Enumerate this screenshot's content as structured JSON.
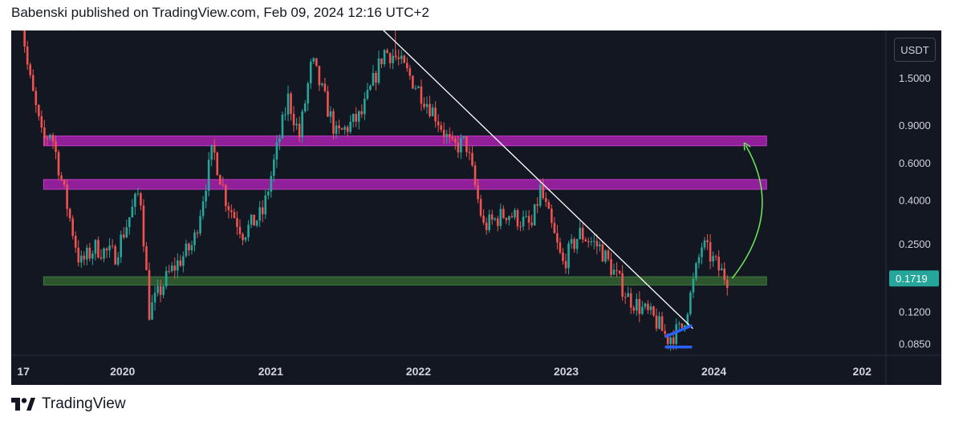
{
  "header": {
    "publisher": "Babenski published on TradingView.com, Feb 09, 2024 12:16 UTC+2"
  },
  "price_axis": {
    "currency": "USDT",
    "last_price_label": "0.1719"
  },
  "branding": {
    "logo_text": "TradingView"
  },
  "colors": {
    "background": "#131722",
    "bull": "#26a69a",
    "bear": "#ef5350",
    "resistance_zone": "#a020a6",
    "support_zone": "#2e5a2f",
    "trendline": "#ffffff",
    "wedge": "#2962ff",
    "arrow": "#6ee95a",
    "last_price_bg": "#26a69a"
  },
  "chart_data": {
    "type": "candlestick",
    "scale": "log",
    "ylim": [
      0.075,
      2.5
    ],
    "y_ticks": [
      0.085,
      0.12,
      0.17,
      0.25,
      0.4,
      0.6,
      0.9,
      1.5
    ],
    "y_tick_labels": [
      "0.0850",
      "0.1200",
      "0.1719",
      "0.2500",
      "0.4000",
      "0.6000",
      "0.9000",
      "1.5000"
    ],
    "x_range": [
      "2019-04",
      "2025-03"
    ],
    "x_ticks": [
      {
        "date": "2019-05",
        "label": "17"
      },
      {
        "date": "2020-01",
        "label": "2020"
      },
      {
        "date": "2021-01",
        "label": "2021"
      },
      {
        "date": "2022-01",
        "label": "2022"
      },
      {
        "date": "2023-01",
        "label": "2023"
      },
      {
        "date": "2024-01",
        "label": "2024"
      },
      {
        "date": "2025-01",
        "label": "202"
      }
    ],
    "price_path": [
      [
        "2019-04-20",
        4.5
      ],
      [
        "2019-05-20",
        1.6
      ],
      [
        "2019-06-25",
        0.75
      ],
      [
        "2019-07-15",
        0.85
      ],
      [
        "2019-08-15",
        0.45
      ],
      [
        "2019-09-25",
        0.2
      ],
      [
        "2019-11-01",
        0.24
      ],
      [
        "2019-12-20",
        0.22
      ],
      [
        "2020-02-20",
        0.45
      ],
      [
        "2020-03-14",
        0.12
      ],
      [
        "2020-05-01",
        0.18
      ],
      [
        "2020-07-01",
        0.25
      ],
      [
        "2020-08-18",
        0.7
      ],
      [
        "2020-09-20",
        0.4
      ],
      [
        "2020-11-01",
        0.28
      ],
      [
        "2020-12-20",
        0.35
      ],
      [
        "2021-02-20",
        1.2
      ],
      [
        "2021-03-20",
        0.8
      ],
      [
        "2021-04-20",
        1.8
      ],
      [
        "2021-06-20",
        0.8
      ],
      [
        "2021-08-20",
        1.0
      ],
      [
        "2021-10-15",
        2.0
      ],
      [
        "2021-11-10",
        1.9
      ],
      [
        "2021-12-20",
        1.5
      ],
      [
        "2022-02-20",
        1.0
      ],
      [
        "2022-04-01",
        0.7
      ],
      [
        "2022-05-05",
        0.75
      ],
      [
        "2022-06-18",
        0.3
      ],
      [
        "2022-08-15",
        0.35
      ],
      [
        "2022-10-15",
        0.3
      ],
      [
        "2022-11-05",
        0.45
      ],
      [
        "2022-12-30",
        0.2
      ],
      [
        "2023-02-10",
        0.28
      ],
      [
        "2023-04-01",
        0.24
      ],
      [
        "2023-06-10",
        0.14
      ],
      [
        "2023-08-15",
        0.11
      ],
      [
        "2023-09-15",
        0.09
      ],
      [
        "2023-10-20",
        0.1
      ],
      [
        "2023-11-10",
        0.14
      ],
      [
        "2023-12-10",
        0.25
      ],
      [
        "2024-01-20",
        0.19
      ],
      [
        "2024-02-09",
        0.1719
      ]
    ],
    "wick_spikes": [
      [
        "2021-11-05",
        2.8
      ]
    ],
    "zones": [
      {
        "id": "resistance-zone-upper",
        "date_from": "2019-06-20",
        "date_to": "2024-05-10",
        "price_low": 0.72,
        "price_high": 0.8
      },
      {
        "id": "resistance-zone-lower",
        "date_from": "2019-06-20",
        "date_to": "2024-05-10",
        "price_low": 0.45,
        "price_high": 0.5
      },
      {
        "id": "support-zone",
        "date_from": "2019-06-20",
        "date_to": "2024-05-10",
        "price_low": 0.16,
        "price_high": 0.175
      }
    ],
    "trendline": {
      "from": [
        "2021-09-10",
        2.8
      ],
      "to": [
        "2023-11-10",
        0.1
      ]
    },
    "wedge_lines": [
      {
        "from": [
          "2023-09-05",
          0.092
        ],
        "to": [
          "2023-11-05",
          0.103
        ]
      },
      {
        "from": [
          "2023-09-05",
          0.082
        ],
        "to": [
          "2023-11-05",
          0.082
        ]
      }
    ],
    "arrow": {
      "from": [
        "2024-02-15",
        0.172
      ],
      "to": [
        "2024-03-20",
        0.72
      ]
    },
    "last_price": 0.1719
  }
}
